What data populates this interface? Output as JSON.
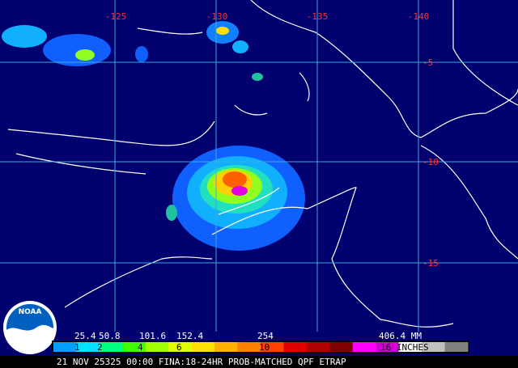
{
  "map": {
    "longitude_labels": [
      "-125",
      "-130",
      "-135",
      "-140"
    ],
    "latitude_labels": [
      "-5",
      "-10",
      "-15"
    ]
  },
  "logo": "NOAA",
  "legend": {
    "mm_labels": [
      "25.4",
      "50.8",
      "101.6",
      "152.4",
      "254",
      "406.4 MM"
    ],
    "inch_labels": [
      "1",
      "2",
      "4",
      "6",
      "10",
      "16 INCHES"
    ],
    "colors": [
      "#00a0ff",
      "#00e0ff",
      "#00ff80",
      "#40ff00",
      "#a0ff00",
      "#e0ff00",
      "#ffe000",
      "#ffb000",
      "#ff8000",
      "#ff4000",
      "#e00000",
      "#b00000",
      "#800000",
      "#ff00ff",
      "#d000d0",
      "#ffffff",
      "#c0c0c0",
      "#808080"
    ]
  },
  "footer": "21 NOV 25325 00:00 FINA:18-24HR PROB-MATCHED QPF ETRAP"
}
